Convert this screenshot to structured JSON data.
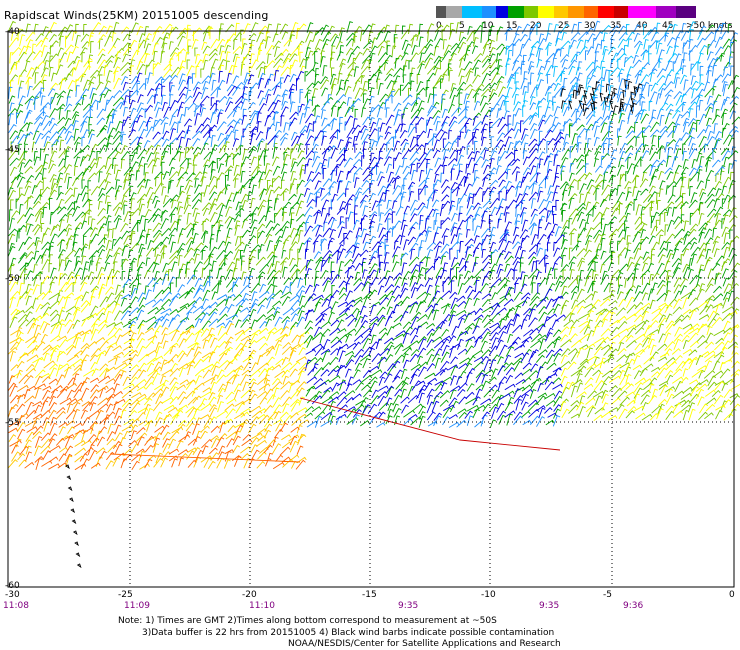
{
  "title": "Rapidscat Winds(25KM) 20151005 descending",
  "colorbar": {
    "labels": [
      "0",
      "5",
      "10",
      "15",
      "20",
      "25",
      "30",
      "35",
      "40",
      "45",
      ">50 knots"
    ],
    "colors": [
      "#555555",
      "#a8a8a8",
      "#00bfff",
      "#1e90ff",
      "#0000e0",
      "#00a000",
      "#7ec800",
      "#ffff00",
      "#ffc800",
      "#ff9600",
      "#ff6400",
      "#ff0000",
      "#c80000",
      "#ff00ff",
      "#a000c0",
      "#5a0080"
    ]
  },
  "map": {
    "lat_labels": [
      "-40",
      "-45",
      "-50",
      "-55",
      "-60"
    ],
    "lon_labels": [
      "-30",
      "-25",
      "-20",
      "-15",
      "-10",
      "-5",
      "0"
    ],
    "time_labels": [
      "11:08",
      "11:09",
      "11:10",
      "9:35",
      "9:35",
      "9:36"
    ],
    "lon_range": [
      -30,
      0
    ],
    "lat_range": [
      -60,
      -40
    ]
  },
  "notes": {
    "line1": "Note: 1) Times are GMT 2)Times along bottom correspond to measurement at ~50S",
    "line2": "3)Data buffer is 22 hrs from 20151005 4) Black wind barbs indicate possible contamination",
    "line3": "NOAA/NESDIS/Center for Satellite Applications and Research"
  }
}
